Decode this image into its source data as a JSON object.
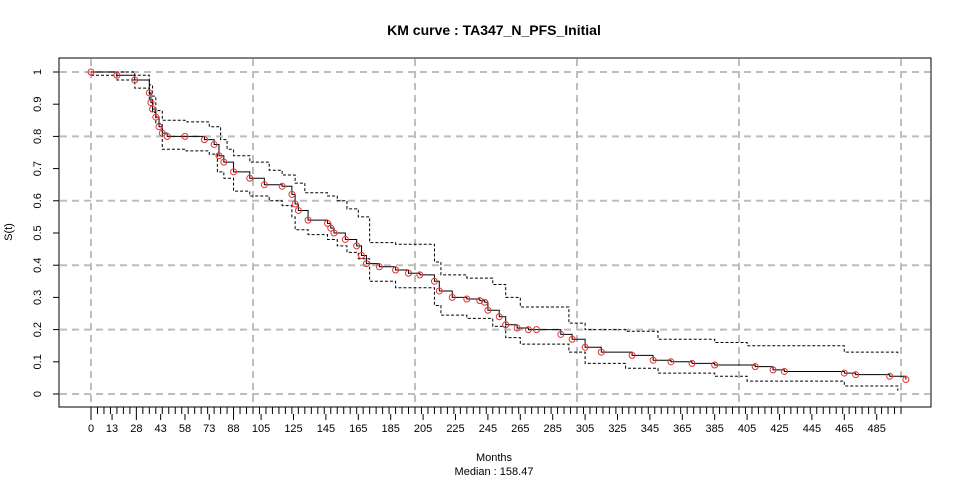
{
  "chart_data": {
    "type": "line",
    "title": "KM curve : TA347_N_PFS_Initial",
    "xlabel": "Months",
    "ylabel": "S(t)",
    "subtitle": "Median : 158.47",
    "xlim": [
      -2,
      518
    ],
    "ylim": [
      -0.04,
      1.04
    ],
    "x_ticks": [
      0,
      13,
      28,
      43,
      58,
      73,
      88,
      105,
      125,
      145,
      165,
      185,
      205,
      225,
      245,
      265,
      285,
      305,
      325,
      345,
      365,
      385,
      405,
      425,
      445,
      465,
      485
    ],
    "y_ticks": [
      "0",
      "0.1",
      "0.2",
      "0.3",
      "0.4",
      "0.5",
      "0.6",
      "0.7",
      "0.8",
      "0.9",
      "1"
    ],
    "grid_x": [
      0,
      100,
      200,
      300,
      400,
      500
    ],
    "grid_y": [
      0,
      0.2,
      0.4,
      0.6,
      0.8,
      1.0
    ],
    "series": [
      {
        "line_color": "#000000",
        "marker_color": "#e8302c",
        "x": [
          0,
          16,
          27,
          36,
          37,
          38,
          40,
          42,
          44,
          47,
          58,
          70,
          76,
          79,
          82,
          88,
          98,
          107,
          118,
          124,
          126,
          128,
          134,
          146,
          148,
          150,
          157,
          164,
          167,
          170,
          178,
          188,
          196,
          203,
          212,
          215,
          223,
          232,
          240,
          243,
          245,
          252,
          256,
          263,
          270,
          275,
          290,
          297,
          305,
          315,
          334,
          347,
          358,
          371,
          385,
          410,
          421,
          428,
          465,
          472,
          493,
          503
        ],
        "y": [
          1.0,
          0.99,
          0.975,
          0.935,
          0.905,
          0.885,
          0.86,
          0.83,
          0.81,
          0.8,
          0.8,
          0.79,
          0.775,
          0.74,
          0.72,
          0.69,
          0.67,
          0.65,
          0.645,
          0.62,
          0.59,
          0.57,
          0.54,
          0.53,
          0.515,
          0.5,
          0.48,
          0.46,
          0.43,
          0.405,
          0.395,
          0.385,
          0.375,
          0.37,
          0.35,
          0.32,
          0.3,
          0.295,
          0.29,
          0.285,
          0.26,
          0.24,
          0.215,
          0.205,
          0.2,
          0.2,
          0.185,
          0.17,
          0.145,
          0.13,
          0.12,
          0.105,
          0.1,
          0.095,
          0.09,
          0.085,
          0.075,
          0.07,
          0.065,
          0.06,
          0.055,
          0.045
        ]
      },
      {
        "line_style": "dashed",
        "x": [
          0,
          16,
          27,
          36,
          38,
          40,
          44,
          58,
          73,
          80,
          84,
          88,
          98,
          110,
          118,
          126,
          132,
          146,
          152,
          158,
          165,
          172,
          188,
          212,
          216,
          232,
          248,
          256,
          265,
          295,
          305,
          330,
          350,
          385,
          405,
          465,
          498
        ],
        "y": [
          1.0,
          1.0,
          0.99,
          0.96,
          0.925,
          0.88,
          0.85,
          0.845,
          0.83,
          0.79,
          0.76,
          0.74,
          0.72,
          0.695,
          0.68,
          0.655,
          0.625,
          0.615,
          0.6,
          0.575,
          0.55,
          0.47,
          0.465,
          0.41,
          0.37,
          0.36,
          0.34,
          0.3,
          0.27,
          0.22,
          0.2,
          0.195,
          0.17,
          0.16,
          0.15,
          0.13,
          0.12
        ]
      },
      {
        "line_style": "dashed",
        "x": [
          0,
          16,
          27,
          36,
          38,
          40,
          44,
          58,
          73,
          78,
          82,
          88,
          98,
          110,
          118,
          124,
          126,
          134,
          146,
          152,
          158,
          165,
          172,
          188,
          212,
          216,
          232,
          248,
          256,
          265,
          295,
          305,
          330,
          350,
          385,
          405,
          465,
          498
        ],
        "y": [
          0.99,
          0.975,
          0.95,
          0.915,
          0.875,
          0.84,
          0.76,
          0.755,
          0.745,
          0.69,
          0.67,
          0.63,
          0.615,
          0.6,
          0.585,
          0.55,
          0.51,
          0.495,
          0.48,
          0.46,
          0.44,
          0.42,
          0.35,
          0.33,
          0.275,
          0.245,
          0.235,
          0.21,
          0.175,
          0.155,
          0.13,
          0.095,
          0.08,
          0.065,
          0.055,
          0.04,
          0.025,
          0.01
        ]
      }
    ],
    "censor_ticks_x_range": [
      0,
      500
    ],
    "censor_ticks_step": 4,
    "grid": true
  }
}
